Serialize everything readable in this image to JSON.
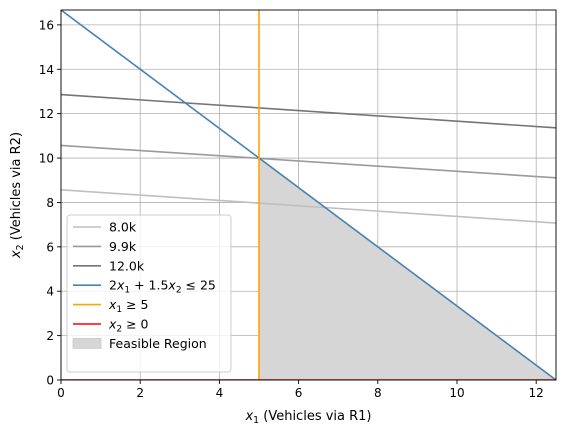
{
  "chart_data": {
    "type": "line",
    "xlabel": "x1 (Vehicles via R1)",
    "ylabel": "x2 (Vehicles via R2)",
    "xlim": [
      0,
      12.5
    ],
    "ylim": [
      0,
      16.67
    ],
    "xticks": [
      0,
      2,
      4,
      6,
      8,
      10,
      12
    ],
    "yticks": [
      0,
      2,
      4,
      6,
      8,
      10,
      12,
      14,
      16
    ],
    "grid": true,
    "legend_position": "lower-left",
    "series": [
      {
        "name": "8.0k",
        "color": "#bfbfbf",
        "points": [
          [
            0,
            8.57
          ],
          [
            12.5,
            7.07
          ]
        ]
      },
      {
        "name": "9.9k",
        "color": "#9a9a9a",
        "points": [
          [
            0,
            10.57
          ],
          [
            12.5,
            9.11
          ]
        ]
      },
      {
        "name": "12.0k",
        "color": "#757575",
        "points": [
          [
            0,
            12.86
          ],
          [
            12.5,
            11.36
          ]
        ]
      },
      {
        "name": "2x1 + 1.5x2 ≤ 25",
        "color": "#4682b4",
        "points": [
          [
            0,
            16.67
          ],
          [
            12.5,
            0
          ]
        ]
      },
      {
        "name": "x1 ≥ 5",
        "color": "#ffa500",
        "points": [
          [
            5,
            0
          ],
          [
            5,
            16.67
          ]
        ]
      },
      {
        "name": "x2 ≥ 0",
        "color": "#ff0000",
        "points": [
          [
            0,
            0
          ],
          [
            12.5,
            0
          ]
        ]
      }
    ],
    "feasible_region": {
      "name": "Feasible Region",
      "color": "#d6d6d6",
      "vertices": [
        [
          5,
          0
        ],
        [
          5,
          10
        ],
        [
          12.5,
          0
        ]
      ]
    }
  }
}
